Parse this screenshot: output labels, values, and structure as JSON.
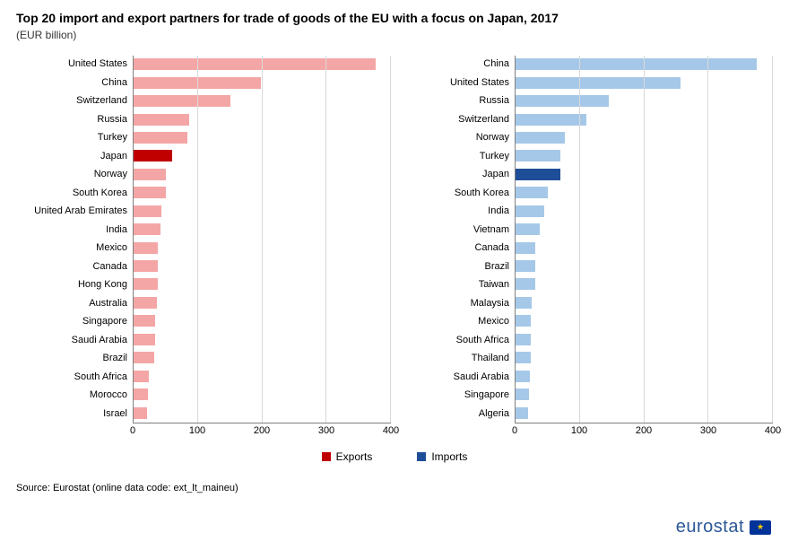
{
  "title": "Top 20 import and export partners for trade of goods of the EU with a focus on Japan, 2017",
  "subtitle": "(EUR billion)",
  "colors": {
    "export_normal": "#f4a6a6",
    "export_highlight": "#c00000",
    "import_normal": "#a6c8e8",
    "import_highlight": "#1f4e99",
    "grid": "#d9d9d9",
    "axis": "#808080",
    "background": "#ffffff"
  },
  "x_axis": {
    "min": 0,
    "max": 400,
    "step": 100,
    "ticks": [
      0,
      100,
      200,
      300,
      400
    ]
  },
  "label_fontsize": 11,
  "exports": {
    "highlight_country": "Japan",
    "rows": [
      {
        "label": "United States",
        "value": 376
      },
      {
        "label": "China",
        "value": 198
      },
      {
        "label": "Switzerland",
        "value": 150
      },
      {
        "label": "Russia",
        "value": 86
      },
      {
        "label": "Turkey",
        "value": 84
      },
      {
        "label": "Japan",
        "value": 60
      },
      {
        "label": "Norway",
        "value": 50
      },
      {
        "label": "South Korea",
        "value": 50
      },
      {
        "label": "United Arab Emirates",
        "value": 43
      },
      {
        "label": "India",
        "value": 42
      },
      {
        "label": "Mexico",
        "value": 38
      },
      {
        "label": "Canada",
        "value": 37
      },
      {
        "label": "Hong Kong",
        "value": 37
      },
      {
        "label": "Australia",
        "value": 36
      },
      {
        "label": "Singapore",
        "value": 33
      },
      {
        "label": "Saudi Arabia",
        "value": 33
      },
      {
        "label": "Brazil",
        "value": 32
      },
      {
        "label": "South Africa",
        "value": 24
      },
      {
        "label": "Morocco",
        "value": 22
      },
      {
        "label": "Israel",
        "value": 21
      }
    ]
  },
  "imports": {
    "highlight_country": "Japan",
    "rows": [
      {
        "label": "China",
        "value": 375
      },
      {
        "label": "United States",
        "value": 257
      },
      {
        "label": "Russia",
        "value": 145
      },
      {
        "label": "Switzerland",
        "value": 110
      },
      {
        "label": "Norway",
        "value": 77
      },
      {
        "label": "Turkey",
        "value": 70
      },
      {
        "label": "Japan",
        "value": 69
      },
      {
        "label": "South Korea",
        "value": 50
      },
      {
        "label": "India",
        "value": 44
      },
      {
        "label": "Vietnam",
        "value": 37
      },
      {
        "label": "Canada",
        "value": 31
      },
      {
        "label": "Brazil",
        "value": 31
      },
      {
        "label": "Taiwan",
        "value": 30
      },
      {
        "label": "Malaysia",
        "value": 25
      },
      {
        "label": "Mexico",
        "value": 24
      },
      {
        "label": "South Africa",
        "value": 23
      },
      {
        "label": "Thailand",
        "value": 23
      },
      {
        "label": "Saudi Arabia",
        "value": 22
      },
      {
        "label": "Singapore",
        "value": 21
      },
      {
        "label": "Algeria",
        "value": 20
      }
    ]
  },
  "legend": {
    "exports": "Exports",
    "imports": "Imports"
  },
  "source": "Source: Eurostat (online data code: ext_lt_maineu)",
  "logo_text": "eurostat"
}
